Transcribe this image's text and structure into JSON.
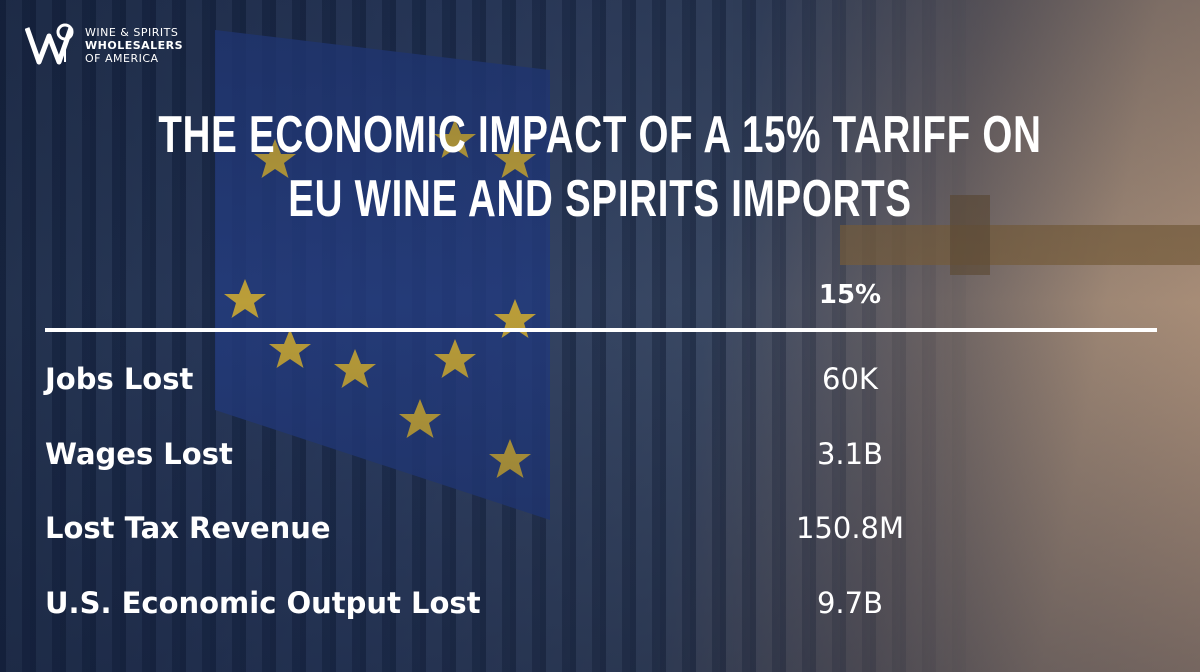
{
  "logo": {
    "lines": [
      "WINE & SPIRITS",
      "WHOLESALERS",
      "OF AMERICA"
    ]
  },
  "title": {
    "lines": [
      "THE ECONOMIC IMPACT OF A 15% TARIFF ON",
      "EU WINE AND SPIRITS IMPORTS"
    ]
  },
  "table": {
    "column_header": "15%",
    "rows": [
      [
        "Jobs Lost",
        "60K"
      ],
      [
        "Wages Lost",
        "3.1B"
      ],
      [
        "Lost Tax Revenue",
        "150.8M"
      ],
      [
        "U.S. Economic Output Lost",
        "9.7B"
      ]
    ]
  }
}
